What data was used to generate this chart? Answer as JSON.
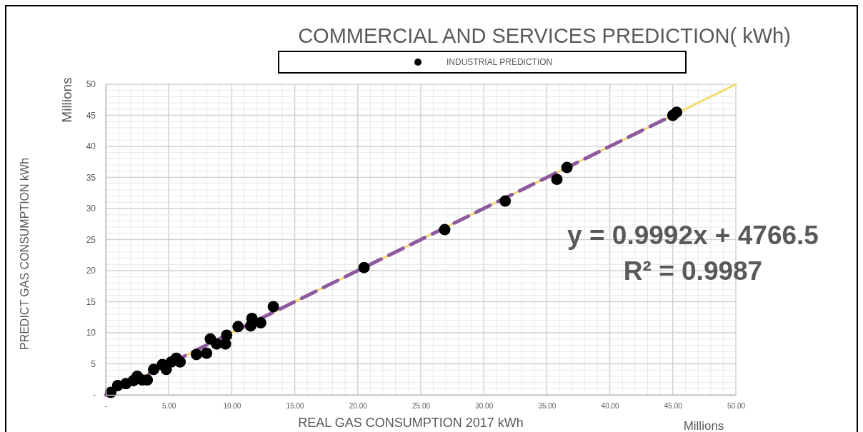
{
  "chart_data": {
    "type": "scatter",
    "title": "COMMERCIAL AND SERVICES  PREDICTION( kWh)",
    "xlabel": "REAL GAS CONSUMPTION 2017 kWh",
    "ylabel": "PREDICT  GAS CONSUMPTION kWh",
    "annotations": [
      "Millions",
      "Millions",
      "y = 0.9992x + 4766.5",
      "R² = 0.9987"
    ],
    "xlim": [
      0,
      50
    ],
    "ylim": [
      0,
      50
    ],
    "xticks": [
      {
        "value": 0,
        "label": "-"
      },
      {
        "value": 5,
        "label": "5.00"
      },
      {
        "value": 10,
        "label": "10.00"
      },
      {
        "value": 15,
        "label": "15.00"
      },
      {
        "value": 20,
        "label": "20.00"
      },
      {
        "value": 25,
        "label": "25.00"
      },
      {
        "value": 30,
        "label": "30.00"
      },
      {
        "value": 35,
        "label": "35.00"
      },
      {
        "value": 40,
        "label": "40.00"
      },
      {
        "value": 45,
        "label": "45.00"
      },
      {
        "value": 50,
        "label": "50.00"
      }
    ],
    "yticks": [
      {
        "value": 0,
        "label": "-"
      },
      5,
      10,
      15,
      20,
      25,
      30,
      35,
      40,
      45,
      50
    ],
    "grid": true,
    "legend": "top",
    "marker": "circle",
    "series": [
      {
        "type": "line",
        "color": "#f5d76e",
        "line_style": "solid",
        "marker": "none",
        "x": [
          0,
          50
        ],
        "values": [
          0,
          50
        ]
      },
      {
        "type": "line",
        "color": "#8e5a9e",
        "line_style": "dashed",
        "marker": "none",
        "x": [
          0,
          45.3
        ],
        "values": [
          0,
          45.3
        ]
      },
      {
        "name": "INDUSTRIAL PREDICTION",
        "color": "#000000",
        "x": [
          0.4,
          0.95,
          1.6,
          2.2,
          2.5,
          2.9,
          3.3,
          3.8,
          4.5,
          4.8,
          5.2,
          5.6,
          5.9,
          7.2,
          8.0,
          8.3,
          8.8,
          9.5,
          9.6,
          10.5,
          11.5,
          11.6,
          12.3,
          13.3,
          20.5,
          26.9,
          31.7,
          35.8,
          36.6,
          45.0,
          45.3
        ],
        "values": [
          0.4,
          1.5,
          1.8,
          2.3,
          3.0,
          2.4,
          2.4,
          4.1,
          4.9,
          4.1,
          5.3,
          5.9,
          5.3,
          6.5,
          6.7,
          9.0,
          8.2,
          8.2,
          9.6,
          11.0,
          11.1,
          12.3,
          11.6,
          14.2,
          20.5,
          26.6,
          31.2,
          34.7,
          36.6,
          45.0,
          45.5
        ]
      }
    ]
  }
}
